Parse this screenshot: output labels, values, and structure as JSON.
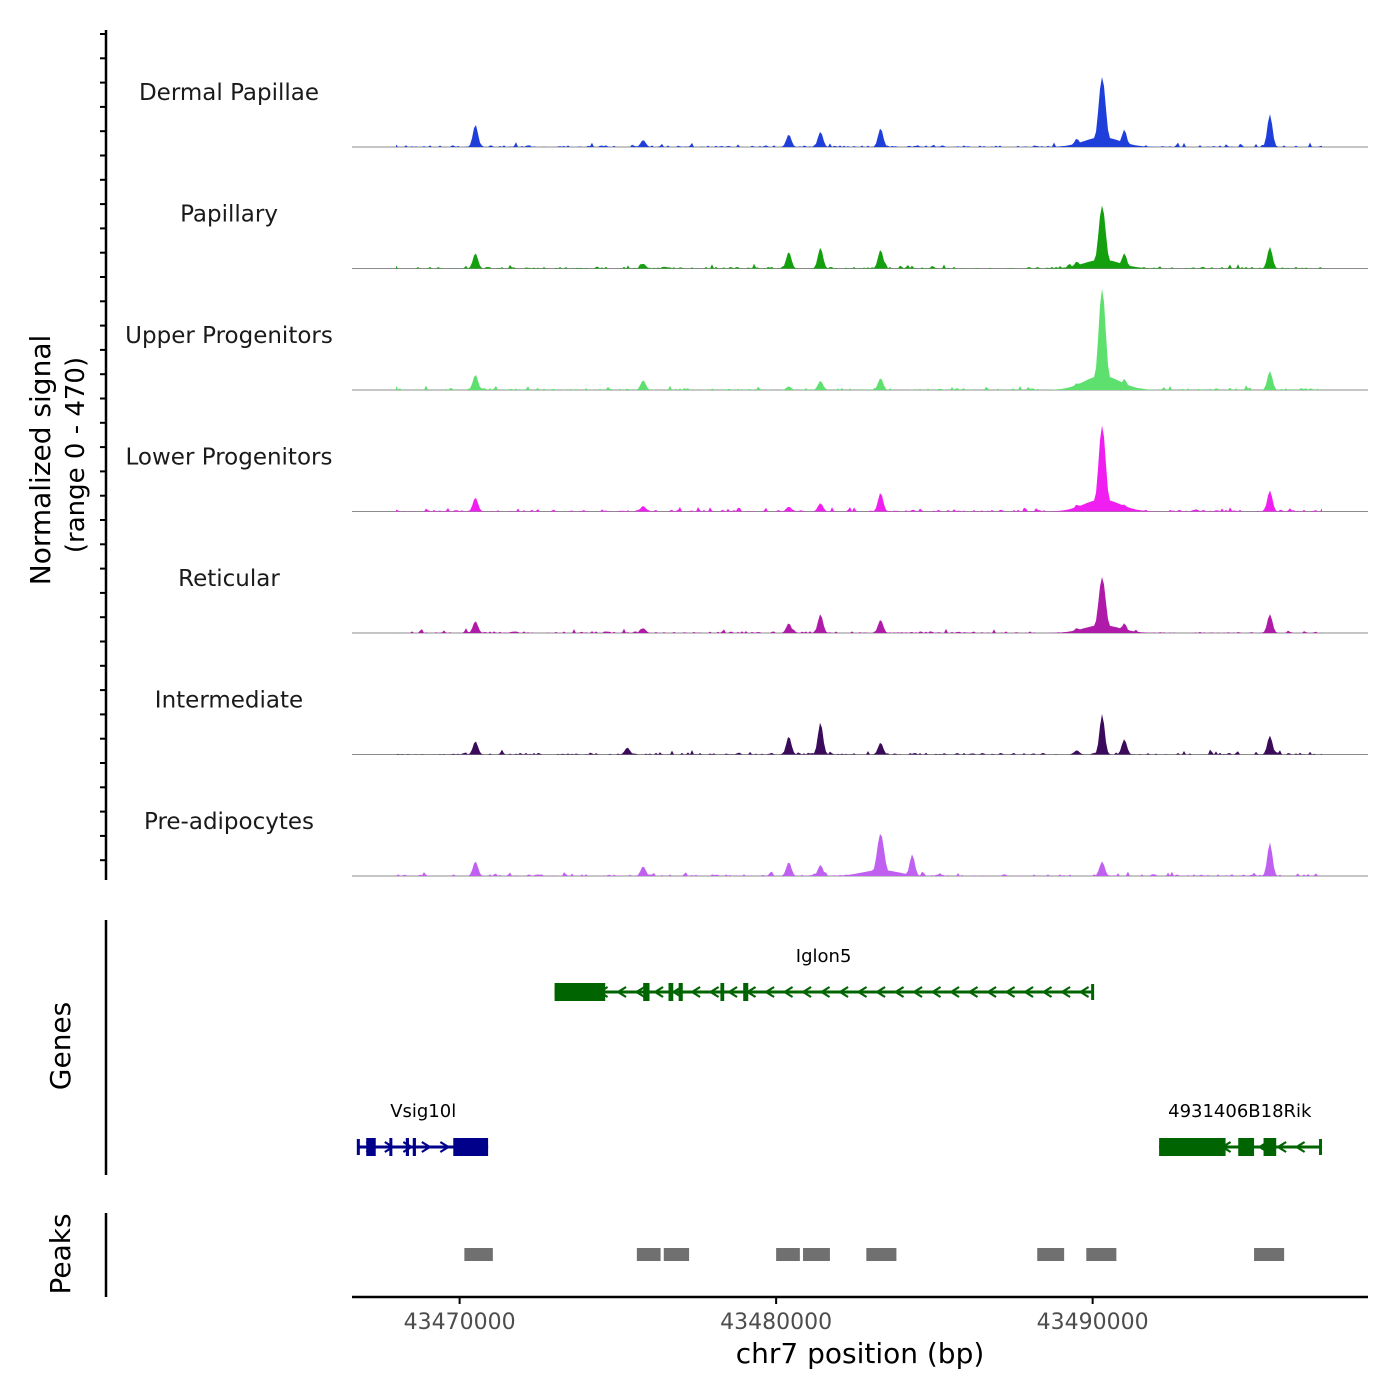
{
  "chart_data": {
    "type": "area",
    "title": "",
    "ylabel_line1": "Normalized signal",
    "ylabel_line2": "(range 0 - 470)",
    "ylim": [
      0,
      470
    ],
    "xlabel": "chr7 position (bp)",
    "xlim": [
      43466600,
      43498700
    ],
    "x_ticks": [
      {
        "value": 43470000,
        "label": "43470000"
      },
      {
        "value": 43480000,
        "label": "43480000"
      },
      {
        "value": 43490000,
        "label": "43490000"
      }
    ],
    "baseline_color": "#8c8c8c",
    "series": [
      {
        "name": "Dermal Papillae",
        "color": "#1f3fdb",
        "peaks": [
          {
            "pos": 43470500,
            "height": 0.32
          },
          {
            "pos": 43475800,
            "height": 0.1
          },
          {
            "pos": 43480400,
            "height": 0.18
          },
          {
            "pos": 43481400,
            "height": 0.22
          },
          {
            "pos": 43483300,
            "height": 0.27
          },
          {
            "pos": 43489500,
            "height": 0.12
          },
          {
            "pos": 43490300,
            "height": 1.0
          },
          {
            "pos": 43491000,
            "height": 0.25
          },
          {
            "pos": 43495600,
            "height": 0.47
          }
        ]
      },
      {
        "name": "Papillary",
        "color": "#14a00e",
        "peaks": [
          {
            "pos": 43470500,
            "height": 0.22
          },
          {
            "pos": 43475800,
            "height": 0.07
          },
          {
            "pos": 43480400,
            "height": 0.24
          },
          {
            "pos": 43481400,
            "height": 0.3
          },
          {
            "pos": 43483300,
            "height": 0.27
          },
          {
            "pos": 43489500,
            "height": 0.1
          },
          {
            "pos": 43490300,
            "height": 0.9
          },
          {
            "pos": 43491000,
            "height": 0.22
          },
          {
            "pos": 43495600,
            "height": 0.31
          }
        ]
      },
      {
        "name": "Upper Progenitors",
        "color": "#5ee06e",
        "peaks": [
          {
            "pos": 43470500,
            "height": 0.22
          },
          {
            "pos": 43475800,
            "height": 0.14
          },
          {
            "pos": 43480400,
            "height": 0.05
          },
          {
            "pos": 43481400,
            "height": 0.13
          },
          {
            "pos": 43483300,
            "height": 0.17
          },
          {
            "pos": 43489500,
            "height": 0.1
          },
          {
            "pos": 43490300,
            "height": 1.45
          },
          {
            "pos": 43491000,
            "height": 0.16
          },
          {
            "pos": 43495600,
            "height": 0.27
          }
        ]
      },
      {
        "name": "Lower Progenitors",
        "color": "#f01ef0",
        "peaks": [
          {
            "pos": 43470500,
            "height": 0.2
          },
          {
            "pos": 43475800,
            "height": 0.08
          },
          {
            "pos": 43480400,
            "height": 0.07
          },
          {
            "pos": 43481400,
            "height": 0.12
          },
          {
            "pos": 43483300,
            "height": 0.27
          },
          {
            "pos": 43489500,
            "height": 0.1
          },
          {
            "pos": 43490300,
            "height": 1.23
          },
          {
            "pos": 43491000,
            "height": 0.1
          },
          {
            "pos": 43495600,
            "height": 0.3
          }
        ]
      },
      {
        "name": "Reticular",
        "color": "#b01aa8",
        "peaks": [
          {
            "pos": 43470500,
            "height": 0.17
          },
          {
            "pos": 43475800,
            "height": 0.07
          },
          {
            "pos": 43480400,
            "height": 0.14
          },
          {
            "pos": 43481400,
            "height": 0.27
          },
          {
            "pos": 43483300,
            "height": 0.19
          },
          {
            "pos": 43489500,
            "height": 0.07
          },
          {
            "pos": 43490300,
            "height": 0.8
          },
          {
            "pos": 43491000,
            "height": 0.14
          },
          {
            "pos": 43495600,
            "height": 0.27
          }
        ]
      },
      {
        "name": "Intermediate",
        "color": "#3b0a5a",
        "peaks": [
          {
            "pos": 43470500,
            "height": 0.19
          },
          {
            "pos": 43475300,
            "height": 0.1
          },
          {
            "pos": 43480400,
            "height": 0.26
          },
          {
            "pos": 43481400,
            "height": 0.46
          },
          {
            "pos": 43483300,
            "height": 0.17
          },
          {
            "pos": 43489500,
            "height": 0.06
          },
          {
            "pos": 43490300,
            "height": 0.58
          },
          {
            "pos": 43491000,
            "height": 0.22
          },
          {
            "pos": 43495600,
            "height": 0.27
          }
        ]
      },
      {
        "name": "Pre-adipocytes",
        "color": "#c060f0",
        "peaks": [
          {
            "pos": 43470500,
            "height": 0.21
          },
          {
            "pos": 43475800,
            "height": 0.14
          },
          {
            "pos": 43480400,
            "height": 0.2
          },
          {
            "pos": 43481400,
            "height": 0.16
          },
          {
            "pos": 43483300,
            "height": 0.61
          },
          {
            "pos": 43484300,
            "height": 0.31
          },
          {
            "pos": 43490300,
            "height": 0.21
          },
          {
            "pos": 43495600,
            "height": 0.48
          }
        ]
      }
    ],
    "genes_panel": {
      "label": "Genes",
      "genes": [
        {
          "name": "Iglon5",
          "strand": "-",
          "color": "#006400",
          "row": 1,
          "start": 43473000,
          "end": 43490000,
          "exons": [
            {
              "start": 43473000,
              "end": 43474600,
              "type": "wide"
            },
            {
              "start": 43475800,
              "end": 43476000,
              "type": "narrow"
            },
            {
              "start": 43476600,
              "end": 43476750,
              "type": "narrow"
            },
            {
              "start": 43476920,
              "end": 43477050,
              "type": "narrow"
            },
            {
              "start": 43478240,
              "end": 43478360,
              "type": "narrow"
            },
            {
              "start": 43478960,
              "end": 43479120,
              "type": "narrow"
            }
          ]
        },
        {
          "name": "Vsig10l",
          "strand": "+",
          "color": "#00008b",
          "row": 2,
          "start": 43466800,
          "end": 43470900,
          "exons": [
            {
              "start": 43467050,
              "end": 43467350,
              "type": "narrow"
            },
            {
              "start": 43467780,
              "end": 43467870,
              "type": "narrow"
            },
            {
              "start": 43468300,
              "end": 43468400,
              "type": "narrow"
            },
            {
              "start": 43468520,
              "end": 43468620,
              "type": "narrow"
            },
            {
              "start": 43469800,
              "end": 43470900,
              "type": "wide"
            }
          ]
        },
        {
          "name": "4931406B18Rik",
          "strand": "-",
          "color": "#006400",
          "row": 2,
          "start": 43492100,
          "end": 43497200,
          "exons": [
            {
              "start": 43492100,
              "end": 43494200,
              "type": "wide"
            },
            {
              "start": 43494600,
              "end": 43495100,
              "type": "narrow"
            },
            {
              "start": 43495400,
              "end": 43495800,
              "type": "narrow"
            }
          ]
        }
      ]
    },
    "peaks_panel": {
      "label": "Peaks",
      "color": "#707070",
      "regions": [
        {
          "start": 43470150,
          "end": 43471050
        },
        {
          "start": 43475600,
          "end": 43476350
        },
        {
          "start": 43476450,
          "end": 43477250
        },
        {
          "start": 43480000,
          "end": 43480750
        },
        {
          "start": 43480850,
          "end": 43481700
        },
        {
          "start": 43482850,
          "end": 43483800
        },
        {
          "start": 43488250,
          "end": 43489100
        },
        {
          "start": 43489800,
          "end": 43490750
        },
        {
          "start": 43495100,
          "end": 43496050
        }
      ]
    }
  }
}
